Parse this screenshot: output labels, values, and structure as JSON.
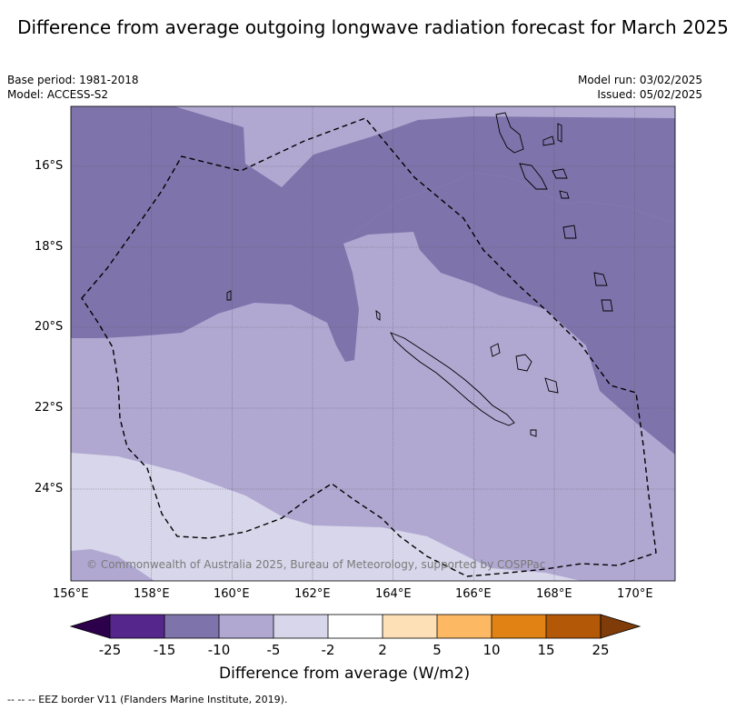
{
  "title": "Difference from average outgoing longwave radiation forecast for March 2025",
  "header": {
    "base_period": "Base period: 1981-2018",
    "model": "Model: ACCESS-S2",
    "model_run": "Model run: 03/02/2025",
    "issued": "Issued: 05/02/2025"
  },
  "map": {
    "longitude_ticks": [
      "156°E",
      "158°E",
      "160°E",
      "162°E",
      "164°E",
      "166°E",
      "168°E",
      "170°E"
    ],
    "latitude_ticks": [
      "16°S",
      "18°S",
      "20°S",
      "22°S",
      "24°S"
    ],
    "copyright": "© Commonwealth of Australia 2025, Bureau of Meteorology, supported by COSPPac",
    "colors": {
      "neg_15_10": "#7f73ab",
      "neg_10_5": "#b0a8d1",
      "neg_5_2": "#d7d6ea"
    }
  },
  "colorbar": {
    "tick_labels": [
      "-25",
      "-15",
      "-10",
      "-5",
      "-2",
      "2",
      "5",
      "10",
      "15",
      "25"
    ],
    "colors": [
      "#55268c",
      "#7f73ab",
      "#b0a8d1",
      "#d7d6ea",
      "#ffffff",
      "#fee0b6",
      "#fdb863",
      "#e08214",
      "#b35806"
    ],
    "under_color": "#2d004b",
    "over_color": "#7f3b08",
    "label": "Difference from average (W/m2)"
  },
  "footnote": "--  --  -- EEZ border V11 (Flanders Marine Institute, 2019)."
}
